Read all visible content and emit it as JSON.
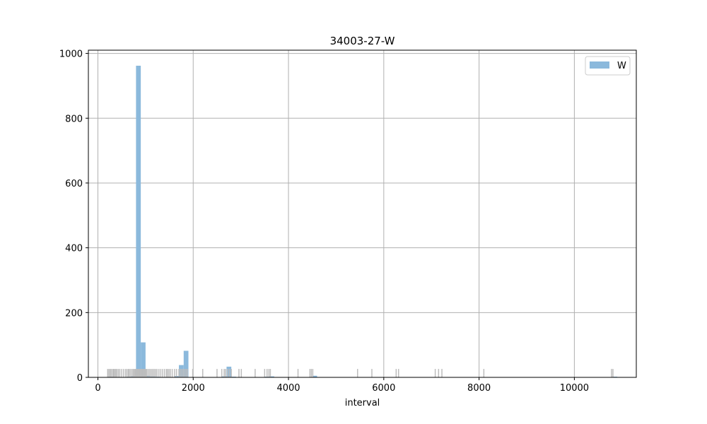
{
  "chart_data": {
    "type": "bar",
    "title": "34003-27-W",
    "xlabel": "interval",
    "ylabel": "",
    "xlim": [
      -200,
      11300
    ],
    "ylim": [
      0,
      1010
    ],
    "xticks": [
      0,
      2000,
      4000,
      6000,
      8000,
      10000
    ],
    "yticks": [
      0,
      200,
      400,
      600,
      800,
      1000
    ],
    "grid": true,
    "legend": {
      "position": "top-right",
      "entries": [
        "W"
      ]
    },
    "colors": {
      "histogram": "#8bb9dc",
      "rug": "#bdbdbd",
      "grid": "#b0b0b0"
    },
    "series": [
      {
        "name": "W",
        "bin_width": 100,
        "bins": [
          {
            "x0": 200,
            "count": 2
          },
          {
            "x0": 300,
            "count": 1
          },
          {
            "x0": 400,
            "count": 1
          },
          {
            "x0": 500,
            "count": 1
          },
          {
            "x0": 600,
            "count": 2
          },
          {
            "x0": 700,
            "count": 4
          },
          {
            "x0": 800,
            "count": 962
          },
          {
            "x0": 900,
            "count": 108
          },
          {
            "x0": 1000,
            "count": 5
          },
          {
            "x0": 1100,
            "count": 3
          },
          {
            "x0": 1200,
            "count": 2
          },
          {
            "x0": 1400,
            "count": 1
          },
          {
            "x0": 1600,
            "count": 4
          },
          {
            "x0": 1700,
            "count": 38
          },
          {
            "x0": 1800,
            "count": 82
          },
          {
            "x0": 2600,
            "count": 3
          },
          {
            "x0": 2700,
            "count": 33
          },
          {
            "x0": 2800,
            "count": 2
          },
          {
            "x0": 3500,
            "count": 2
          },
          {
            "x0": 3600,
            "count": 3
          },
          {
            "x0": 4400,
            "count": 1
          },
          {
            "x0": 4500,
            "count": 5
          },
          {
            "x0": 6200,
            "count": 1
          },
          {
            "x0": 10700,
            "count": 1
          },
          {
            "x0": 10800,
            "count": 2
          }
        ]
      }
    ],
    "rug": {
      "height": 26,
      "x": [
        205,
        230,
        255,
        280,
        310,
        330,
        350,
        375,
        400,
        430,
        460,
        500,
        540,
        580,
        610,
        640,
        660,
        690,
        720,
        745,
        770,
        790,
        810,
        830,
        850,
        870,
        890,
        910,
        930,
        950,
        970,
        990,
        1010,
        1030,
        1060,
        1090,
        1120,
        1150,
        1180,
        1210,
        1240,
        1280,
        1320,
        1360,
        1400,
        1440,
        1460,
        1490,
        1520,
        1560,
        1610,
        1650,
        1700,
        1730,
        1760,
        1790,
        1820,
        1850,
        1880,
        1990,
        2200,
        2500,
        2600,
        2650,
        2680,
        2720,
        2760,
        2800,
        2960,
        3010,
        3300,
        3500,
        3550,
        3590,
        3620,
        4200,
        4450,
        4480,
        4510,
        5450,
        5750,
        6260,
        6310,
        7080,
        7150,
        7220,
        8100,
        10780,
        10810
      ]
    }
  }
}
